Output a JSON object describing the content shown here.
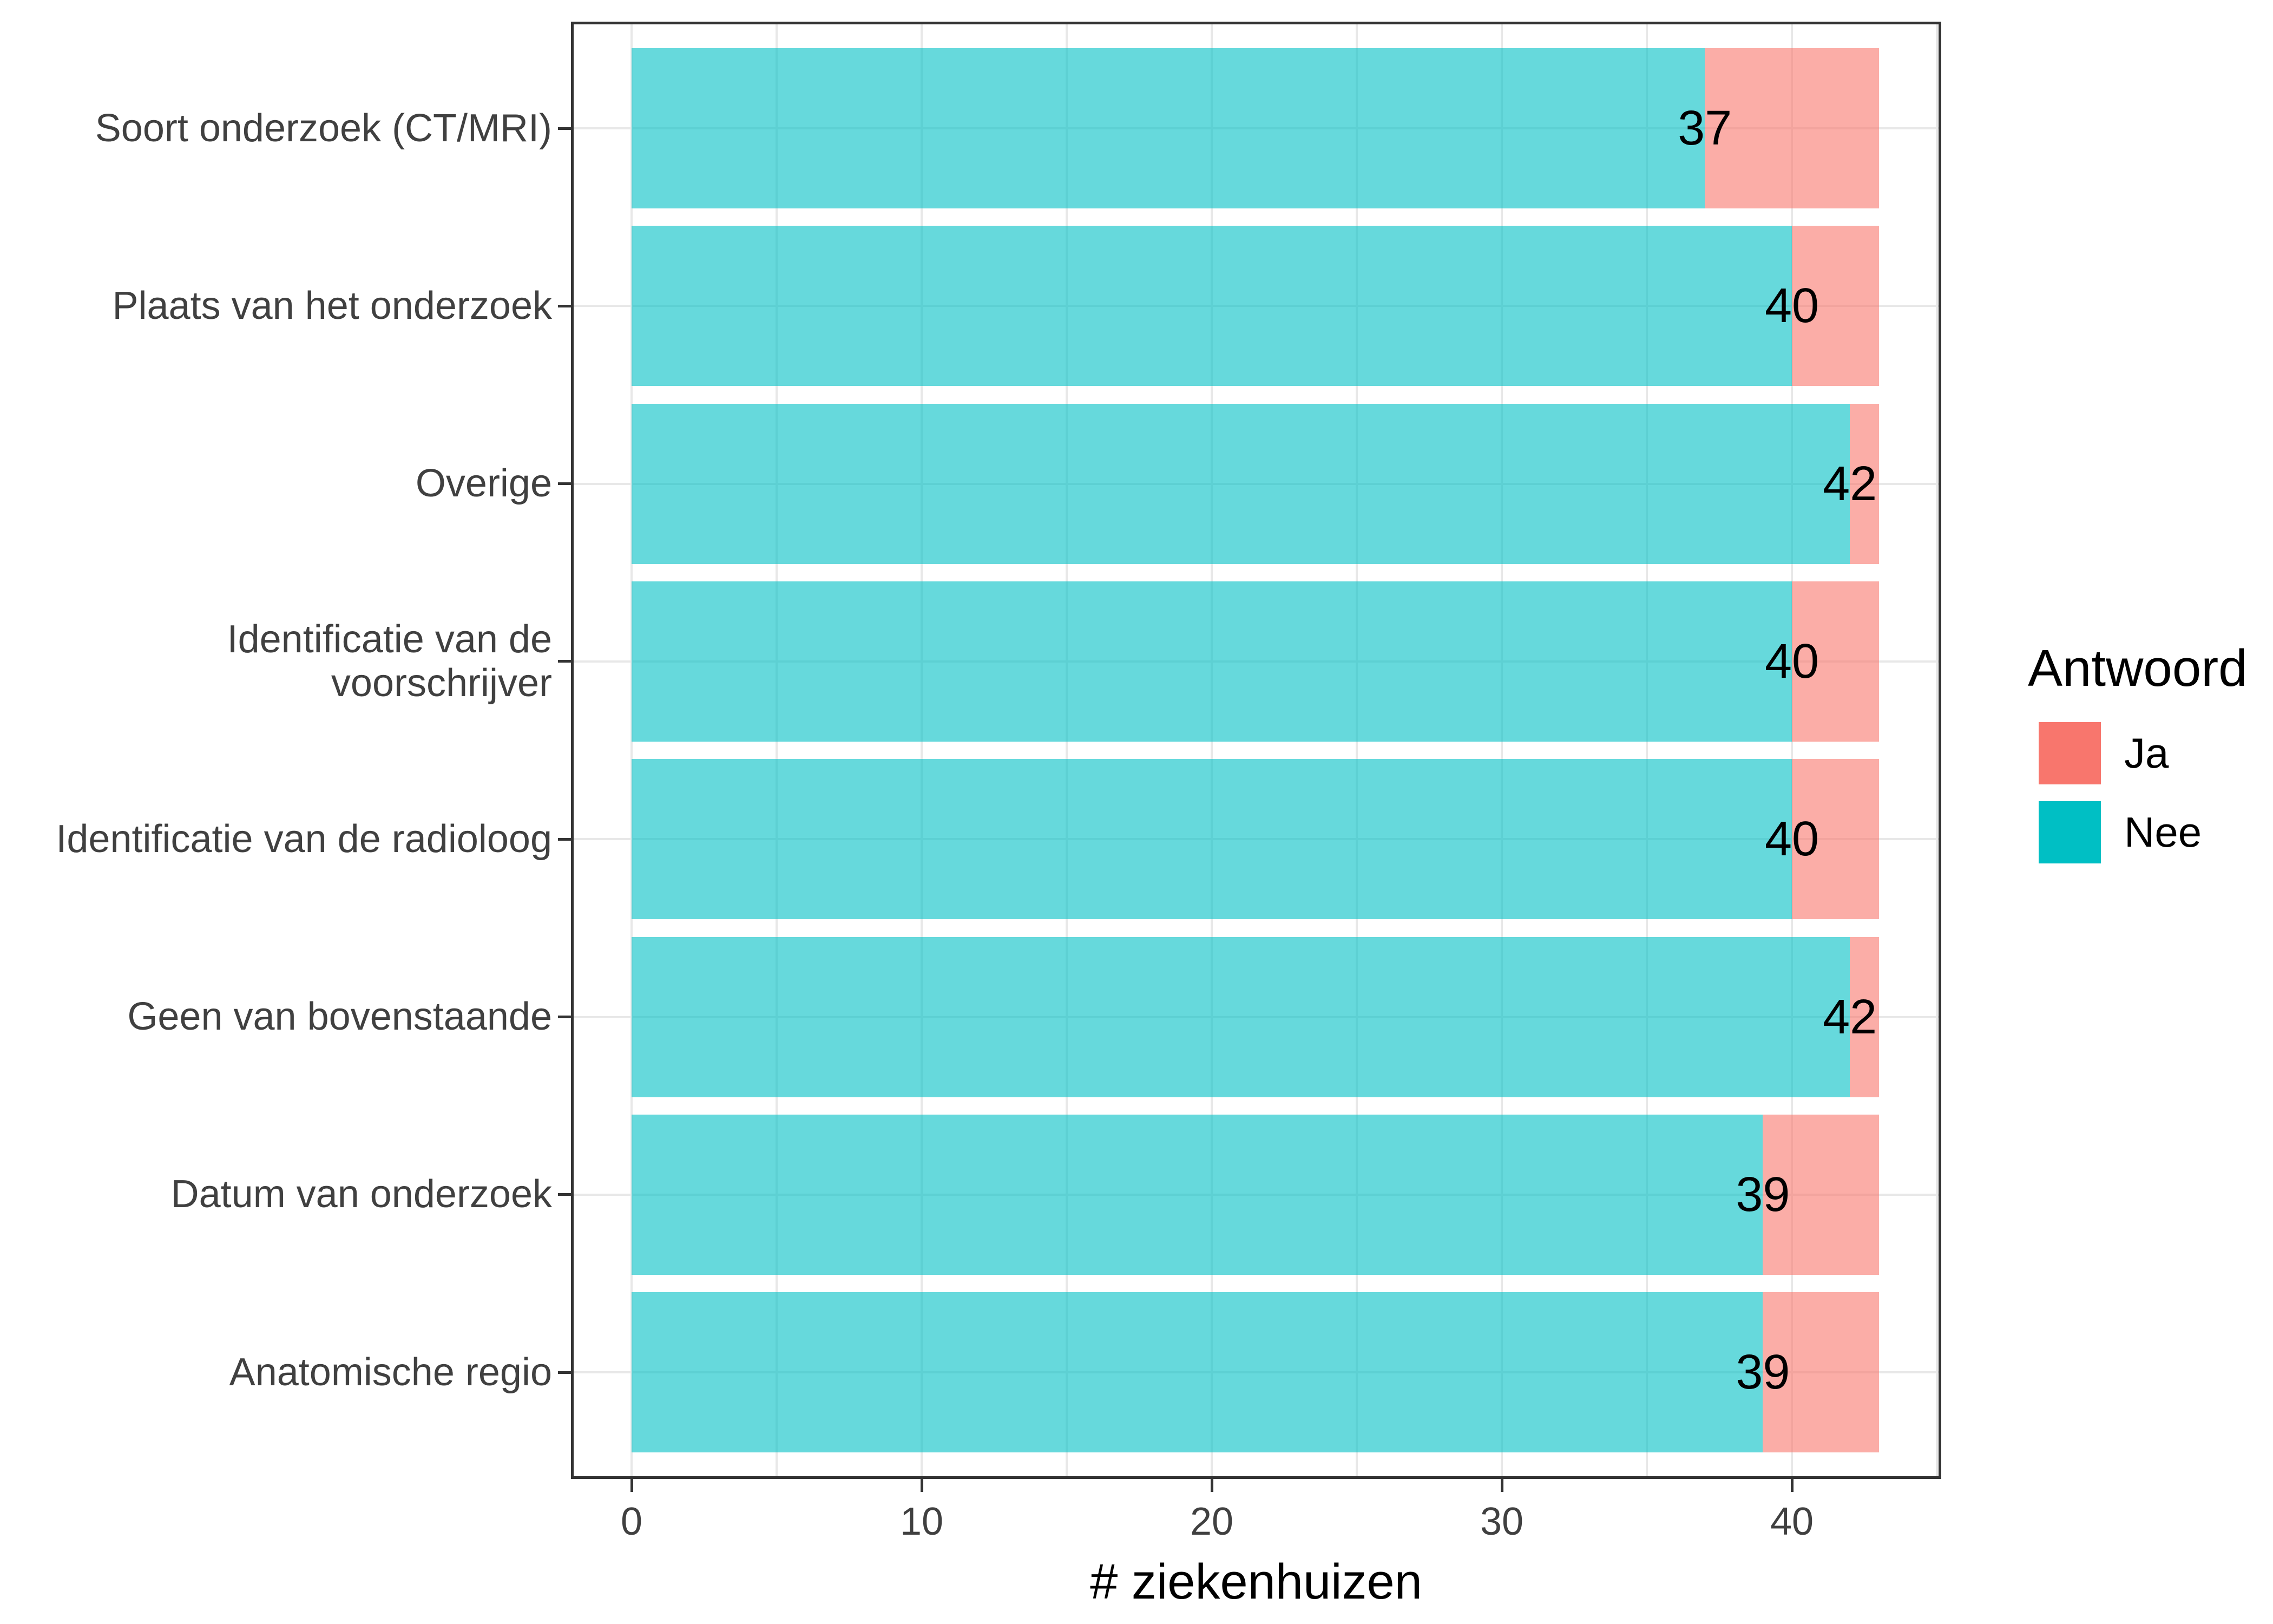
{
  "figure": {
    "background": "#FFFFFF"
  },
  "chart_data": {
    "type": "bar",
    "orientation": "horizontal",
    "stacked": true,
    "title": "",
    "xlabel": "# ziekenhuizen",
    "ylabel": "",
    "categories": [
      "Soort onderzoek (CT/MRI)",
      "Plaats van het onderzoek",
      "Overige",
      "Identificatie van de voorschrijver",
      "Identificatie van de radioloog",
      "Geen van bovenstaande",
      "Datum van onderzoek",
      "Anatomische regio"
    ],
    "series": [
      {
        "name": "Nee",
        "color": "#00BFC4",
        "values": [
          37,
          40,
          42,
          40,
          40,
          42,
          39,
          39
        ]
      },
      {
        "name": "Ja",
        "color": "#F8766D",
        "values": [
          6,
          3,
          1,
          3,
          3,
          1,
          4,
          4
        ]
      }
    ],
    "stack_totals": [
      43,
      43,
      43,
      43,
      43,
      43,
      43,
      43
    ],
    "bar_value_labels": [
      "37",
      "40",
      "42",
      "40",
      "40",
      "42",
      "39",
      "39"
    ],
    "x_axis": {
      "ticks": [
        0,
        10,
        20,
        30,
        40
      ],
      "minor_ticks": [
        5,
        15,
        25,
        35,
        45
      ],
      "data_range": [
        0,
        43
      ]
    },
    "legend": {
      "title": "Antwoord",
      "position": "right",
      "entries": [
        {
          "label": "Ja",
          "color": "#F8766D"
        },
        {
          "label": "Nee",
          "color": "#00BFC4"
        }
      ]
    },
    "style": {
      "bar_fill_alpha": 0.6,
      "grid_color": "#E8E8E8",
      "panel_border_color": "#333333",
      "axis_text_color": "#404040",
      "tick_color": "#333333",
      "bar_label_color": "#000000"
    },
    "grid": true
  }
}
